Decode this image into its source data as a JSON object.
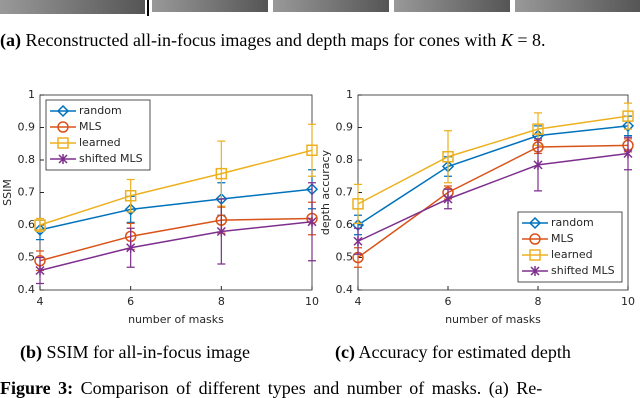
{
  "caption_a": {
    "label": "(a)",
    "text": "Reconstructed all-in-focus images and depth maps for cones with",
    "var": "K",
    "rest": "= 8."
  },
  "figure_caption": {
    "label": "Figure 3:",
    "text": "Comparison of different types and number of masks. (a) Re-"
  },
  "chart_data": [
    {
      "type": "line",
      "xlabel": "number of masks",
      "ylabel": "SSIM",
      "caption": {
        "label": "(b)",
        "text": "SSIM for all-in-focus image"
      },
      "x": [
        4,
        6,
        8,
        10
      ],
      "xlim": [
        4,
        10
      ],
      "xticks": [
        4,
        6,
        8,
        10
      ],
      "ylim": [
        0.4,
        1
      ],
      "yticks": [
        0.4,
        0.5,
        0.6,
        0.7,
        0.8,
        0.9,
        1
      ],
      "legend": "upper left",
      "series": [
        {
          "name": "random",
          "color": "#0072bd",
          "marker": "diamond",
          "values": [
            0.585,
            0.648,
            0.68,
            0.71
          ],
          "errors": [
            0.03,
            0.04,
            0.05,
            0.06
          ]
        },
        {
          "name": "MLS",
          "color": "#d95319",
          "marker": "circle",
          "values": [
            0.49,
            0.565,
            0.615,
            0.62
          ],
          "errors": [
            0.03,
            0.04,
            0.04,
            0.05
          ]
        },
        {
          "name": "learned",
          "color": "#edb120",
          "marker": "square",
          "values": [
            0.6,
            0.69,
            0.758,
            0.83
          ],
          "errors": [
            0.02,
            0.05,
            0.1,
            0.08
          ]
        },
        {
          "name": "shifted MLS",
          "color": "#7e2f8e",
          "marker": "x",
          "values": [
            0.46,
            0.53,
            0.58,
            0.61
          ],
          "errors": [
            0.04,
            0.06,
            0.1,
            0.12
          ]
        }
      ]
    },
    {
      "type": "line",
      "xlabel": "number of masks",
      "ylabel": "depth accuracy",
      "caption": {
        "label": "(c)",
        "text": "Accuracy for estimated depth"
      },
      "x": [
        4,
        6,
        8,
        10
      ],
      "xlim": [
        4,
        10
      ],
      "xticks": [
        4,
        6,
        8,
        10
      ],
      "ylim": [
        0.4,
        1
      ],
      "yticks": [
        0.4,
        0.5,
        0.6,
        0.7,
        0.8,
        0.9,
        1
      ],
      "legend": "lower right",
      "series": [
        {
          "name": "random",
          "color": "#0072bd",
          "marker": "diamond",
          "values": [
            0.6,
            0.78,
            0.875,
            0.905
          ],
          "errors": [
            0.03,
            0.03,
            0.03,
            0.03
          ]
        },
        {
          "name": "MLS",
          "color": "#d95319",
          "marker": "circle",
          "values": [
            0.5,
            0.7,
            0.84,
            0.845
          ],
          "errors": [
            0.03,
            0.02,
            0.02,
            0.02
          ]
        },
        {
          "name": "learned",
          "color": "#edb120",
          "marker": "square",
          "values": [
            0.665,
            0.81,
            0.895,
            0.935
          ],
          "errors": [
            0.06,
            0.08,
            0.05,
            0.04
          ]
        },
        {
          "name": "shifted MLS",
          "color": "#7e2f8e",
          "marker": "x",
          "values": [
            0.55,
            0.68,
            0.785,
            0.82
          ],
          "errors": [
            0.04,
            0.03,
            0.08,
            0.05
          ]
        }
      ]
    }
  ]
}
